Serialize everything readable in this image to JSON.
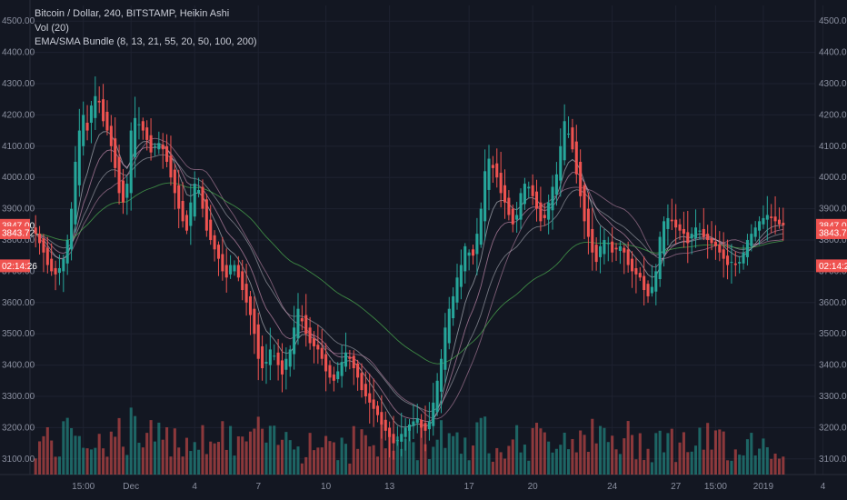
{
  "legend": {
    "title": "Bitcoin / Dollar, 240, BITSTAMP, Heikin Ashi",
    "vol": "Vol (20)",
    "ema": "EMA/SMA Bundle (8, 13, 21, 55, 20, 50, 100, 200)"
  },
  "colors": {
    "background": "#131722",
    "up": "#26a69a",
    "down": "#ef5350",
    "tag_bg": "#ef5350",
    "ma_green": "#4caf50",
    "ma_pink": "#e6a1c8",
    "ma_white": "#d1d4dc"
  },
  "chart_data": {
    "type": "candlestick",
    "ylim": [
      3050,
      4550
    ],
    "yticks": [
      3100,
      3200,
      3300,
      3400,
      3500,
      3600,
      3700,
      3800,
      3900,
      4000,
      4100,
      4200,
      4300,
      4400,
      4500
    ],
    "ytick_labels": [
      "3100.00",
      "3200.00",
      "3300.00",
      "3400.00",
      "3500.00",
      "3600.00",
      "3700.00",
      "3800.00",
      "3900.00",
      "4000.00",
      "4100.00",
      "4200.00",
      "4300.00",
      "4400.00",
      "4500.00"
    ],
    "xticks": [
      {
        "label": "15:00",
        "i": 12
      },
      {
        "label": "Dec",
        "i": 24
      },
      {
        "label": "4",
        "i": 40
      },
      {
        "label": "7",
        "i": 56
      },
      {
        "label": "10",
        "i": 73
      },
      {
        "label": "13",
        "i": 89
      },
      {
        "label": "17",
        "i": 109
      },
      {
        "label": "20",
        "i": 125
      },
      {
        "label": "24",
        "i": 145
      },
      {
        "label": "27",
        "i": 161
      },
      {
        "label": "15:00",
        "i": 171
      },
      {
        "label": "2019",
        "i": 183
      },
      {
        "label": "4",
        "i": 198
      }
    ],
    "price_tags": [
      "3847.00",
      "3843.72",
      "02:14:26"
    ],
    "price_tag_levels": [
      3847.0,
      3843.72,
      3700
    ],
    "closes": [
      3820,
      3790,
      3760,
      3720,
      3700,
      3690,
      3710,
      3740,
      3800,
      3900,
      4050,
      4150,
      4200,
      4150,
      4230,
      4260,
      4240,
      4180,
      4150,
      4100,
      4030,
      3950,
      3920,
      3980,
      4150,
      4190,
      4170,
      4150,
      4120,
      4080,
      4100,
      4110,
      4090,
      4050,
      4000,
      3950,
      3900,
      3860,
      3830,
      3920,
      3980,
      3960,
      3900,
      3830,
      3800,
      3770,
      3740,
      3700,
      3680,
      3720,
      3720,
      3680,
      3640,
      3600,
      3560,
      3500,
      3420,
      3390,
      3410,
      3450,
      3430,
      3400,
      3370,
      3420,
      3450,
      3520,
      3580,
      3540,
      3500,
      3470,
      3460,
      3450,
      3420,
      3380,
      3360,
      3350,
      3380,
      3410,
      3440,
      3420,
      3390,
      3360,
      3320,
      3300,
      3280,
      3260,
      3240,
      3210,
      3190,
      3170,
      3150,
      3160,
      3180,
      3200,
      3210,
      3220,
      3230,
      3200,
      3190,
      3220,
      3280,
      3350,
      3420,
      3520,
      3580,
      3620,
      3680,
      3720,
      3780,
      3760,
      3750,
      3820,
      3900,
      4020,
      4060,
      4030,
      4000,
      3950,
      3920,
      3880,
      3850,
      3880,
      3950,
      3980,
      3970,
      3940,
      3900,
      3860,
      3870,
      3920,
      3970,
      4010,
      4100,
      4180,
      4140,
      4090,
      4010,
      3940,
      3860,
      3810,
      3760,
      3730,
      3780,
      3800,
      3790,
      3760,
      3770,
      3780,
      3760,
      3720,
      3700,
      3690,
      3680,
      3640,
      3620,
      3650,
      3700,
      3810,
      3860,
      3870,
      3860,
      3840,
      3830,
      3820,
      3790,
      3820,
      3840,
      3830,
      3810,
      3800,
      3790,
      3780,
      3760,
      3740,
      3720,
      3730,
      3720,
      3730,
      3760,
      3800,
      3820,
      3840,
      3860,
      3870,
      3880,
      3870,
      3860,
      3850,
      3847
    ]
  }
}
